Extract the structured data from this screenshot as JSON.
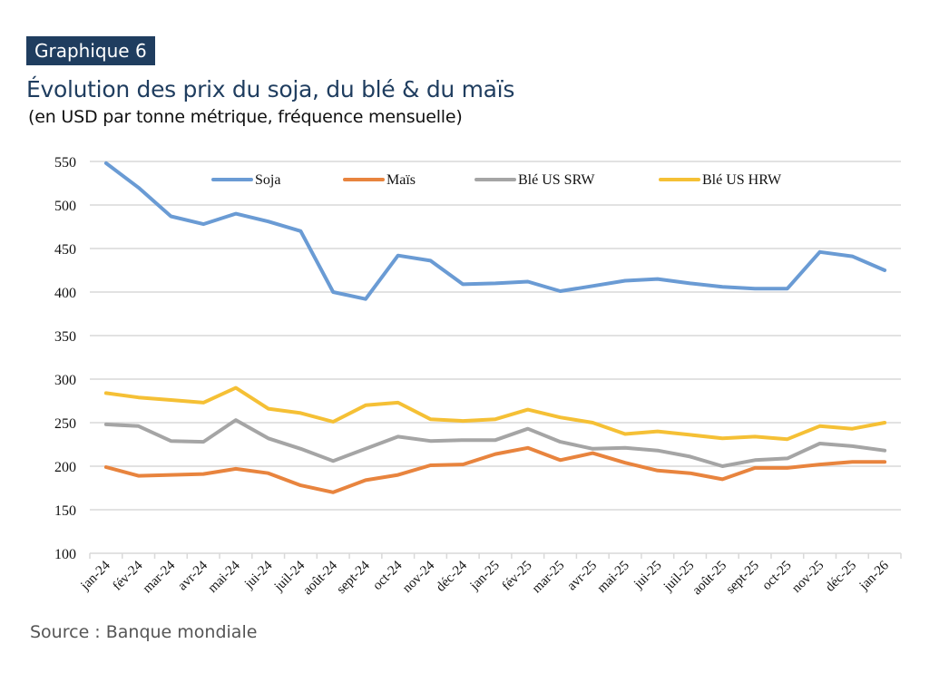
{
  "header": {
    "badge": "Graphique 6",
    "title": "Évolution des prix du soja, du blé & du maïs",
    "subtitle": "(en USD par tonne métrique, fréquence mensuelle)"
  },
  "footer": {
    "source": "Source : Banque mondiale"
  },
  "chart_data": {
    "type": "line",
    "title": "Évolution des prix du soja, du blé & du maïs",
    "xlabel": "",
    "ylabel": "USD par tonne métrique",
    "ylim": [
      100,
      550
    ],
    "yticks": [
      100,
      150,
      200,
      250,
      300,
      350,
      400,
      450,
      500,
      550
    ],
    "grid": true,
    "legend_position": "top",
    "categories": [
      "jan-24",
      "fév-24",
      "mar-24",
      "avr-24",
      "mai-24",
      "jui-24",
      "juil-24",
      "août-24",
      "sept-24",
      "oct-24",
      "nov-24",
      "déc-24",
      "jan-25",
      "fév-25",
      "mar-25",
      "avr-25",
      "mai-25",
      "jui-25",
      "juil-25",
      "août-25",
      "sept-25",
      "oct-25",
      "nov-25",
      "déc-25",
      "jan-26"
    ],
    "series": [
      {
        "name": "Soja",
        "color": "#6a9bd4",
        "values": [
          548,
          520,
          487,
          478,
          490,
          481,
          470,
          400,
          392,
          442,
          436,
          409,
          410,
          412,
          401,
          407,
          413,
          415,
          410,
          406,
          404,
          404,
          446,
          441,
          425
        ]
      },
      {
        "name": "Maïs",
        "color": "#e8843e",
        "values": [
          199,
          189,
          190,
          191,
          197,
          192,
          178,
          170,
          184,
          190,
          201,
          202,
          214,
          221,
          207,
          215,
          204,
          195,
          192,
          185,
          198,
          198,
          202,
          205,
          205
        ]
      },
      {
        "name": "Blé US SRW",
        "color": "#a5a5a5",
        "values": [
          248,
          246,
          229,
          228,
          253,
          232,
          220,
          206,
          220,
          234,
          229,
          230,
          230,
          243,
          228,
          220,
          221,
          218,
          211,
          200,
          207,
          209,
          226,
          223,
          218
        ]
      },
      {
        "name": "Blé US HRW",
        "color": "#f5c035",
        "values": [
          284,
          279,
          276,
          273,
          290,
          266,
          261,
          251,
          270,
          273,
          254,
          252,
          254,
          265,
          256,
          250,
          237,
          240,
          236,
          232,
          234,
          231,
          246,
          243,
          250
        ]
      }
    ]
  }
}
